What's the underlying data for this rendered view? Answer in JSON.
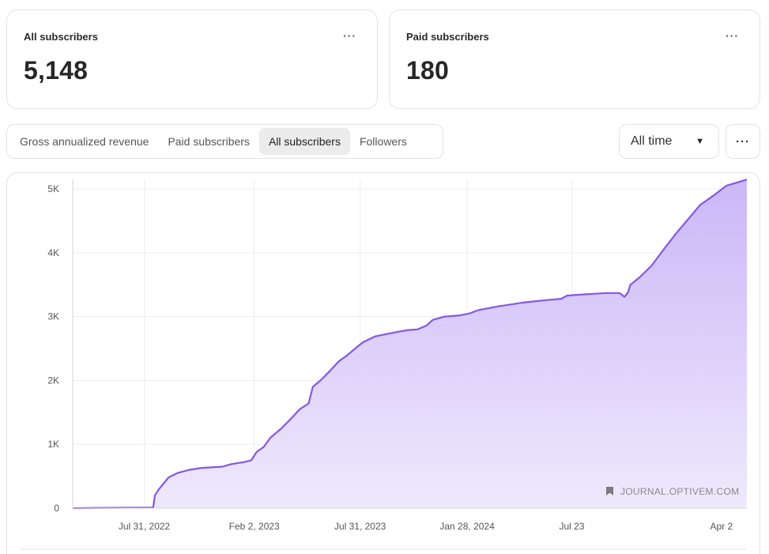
{
  "cards": [
    {
      "label": "All subscribers",
      "value": "5,148",
      "menu": "···"
    },
    {
      "label": "Paid subscribers",
      "value": "180",
      "menu": "···"
    }
  ],
  "tabs": [
    {
      "label": "Gross annualized revenue",
      "active": false
    },
    {
      "label": "Paid subscribers",
      "active": false
    },
    {
      "label": "All subscribers",
      "active": true
    },
    {
      "label": "Followers",
      "active": false
    }
  ],
  "range": {
    "selected": "All time",
    "caret": "▼"
  },
  "more_menu": "···",
  "colors": {
    "line": "#8457e6",
    "fill_top": "#cbb7f7",
    "fill_bottom": "#efe9fd",
    "accent_bg": "#ececec"
  },
  "icons": {
    "watermark": "bookmark-icon"
  },
  "chart_data": {
    "type": "area",
    "title": "",
    "xlabel": "",
    "ylabel": "",
    "ylim": [
      0,
      5150
    ],
    "yticks": [
      {
        "value": 0,
        "label": "0"
      },
      {
        "value": 1000,
        "label": "1K"
      },
      {
        "value": 2000,
        "label": "2K"
      },
      {
        "value": 3000,
        "label": "3K"
      },
      {
        "value": 4000,
        "label": "4K"
      },
      {
        "value": 5000,
        "label": "5K"
      }
    ],
    "xlim": [
      "2022-04-01",
      "2025-05-15"
    ],
    "xticks": [
      {
        "date": "2022-07-31",
        "label": "Jul 31, 2022"
      },
      {
        "date": "2023-02-02",
        "label": "Feb 2, 2023"
      },
      {
        "date": "2023-07-31",
        "label": "Jul 31, 2023"
      },
      {
        "date": "2024-01-28",
        "label": "Jan 28, 2024"
      },
      {
        "date": "2024-07-23",
        "label": "Jul 23"
      },
      {
        "date": "2025-04-02",
        "label": "Apr 2"
      }
    ],
    "grid": true,
    "watermark": "JOURNAL.OPTIVEM.COM",
    "series": [
      {
        "points": [
          [
            "2022-04-01",
            0
          ],
          [
            "2022-05-15",
            5
          ],
          [
            "2022-08-15",
            10
          ],
          [
            "2022-08-18",
            200
          ],
          [
            "2022-08-25",
            300
          ],
          [
            "2022-09-10",
            480
          ],
          [
            "2022-09-25",
            550
          ],
          [
            "2022-10-15",
            600
          ],
          [
            "2022-11-05",
            630
          ],
          [
            "2022-12-10",
            650
          ],
          [
            "2022-12-25",
            690
          ],
          [
            "2023-01-15",
            720
          ],
          [
            "2023-01-28",
            750
          ],
          [
            "2023-02-06",
            880
          ],
          [
            "2023-02-18",
            960
          ],
          [
            "2023-03-01",
            1100
          ],
          [
            "2023-03-20",
            1250
          ],
          [
            "2023-04-05",
            1400
          ],
          [
            "2023-04-20",
            1550
          ],
          [
            "2023-05-05",
            1640
          ],
          [
            "2023-05-12",
            1900
          ],
          [
            "2023-05-25",
            2000
          ],
          [
            "2023-06-10",
            2150
          ],
          [
            "2023-06-25",
            2300
          ],
          [
            "2023-07-10",
            2400
          ],
          [
            "2023-07-25",
            2520
          ],
          [
            "2023-08-05",
            2600
          ],
          [
            "2023-08-25",
            2690
          ],
          [
            "2023-09-20",
            2740
          ],
          [
            "2023-10-20",
            2790
          ],
          [
            "2023-11-05",
            2800
          ],
          [
            "2023-11-20",
            2860
          ],
          [
            "2023-12-01",
            2950
          ],
          [
            "2023-12-20",
            3000
          ],
          [
            "2024-01-15",
            3020
          ],
          [
            "2024-02-01",
            3050
          ],
          [
            "2024-02-15",
            3100
          ],
          [
            "2024-03-20",
            3160
          ],
          [
            "2024-05-01",
            3220
          ],
          [
            "2024-06-10",
            3260
          ],
          [
            "2024-07-05",
            3280
          ],
          [
            "2024-07-15",
            3330
          ],
          [
            "2024-08-15",
            3350
          ],
          [
            "2024-09-20",
            3370
          ],
          [
            "2024-10-12",
            3370
          ],
          [
            "2024-10-20",
            3310
          ],
          [
            "2024-10-26",
            3380
          ],
          [
            "2024-10-30",
            3500
          ],
          [
            "2024-11-15",
            3620
          ],
          [
            "2024-12-05",
            3800
          ],
          [
            "2024-12-25",
            4050
          ],
          [
            "2025-01-15",
            4300
          ],
          [
            "2025-02-05",
            4530
          ],
          [
            "2025-02-25",
            4750
          ],
          [
            "2025-03-20",
            4900
          ],
          [
            "2025-04-10",
            5050
          ],
          [
            "2025-05-15",
            5148
          ]
        ]
      }
    ]
  }
}
